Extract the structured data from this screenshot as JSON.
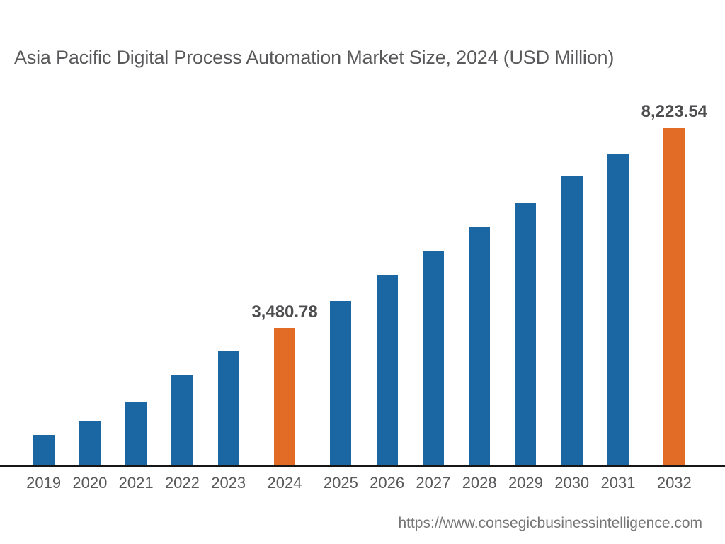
{
  "title": "Asia Pacific Digital Process Automation Market Size, 2024 (USD Million)",
  "source_url": "https://www.consegicbusinessintelligence.com",
  "colors": {
    "background": "#ffffff",
    "bar_default": "#1a67a3",
    "bar_highlight": "#e26b25",
    "axis_line": "#161616",
    "title_text": "#59595b",
    "value_label_text": "#4d4d50",
    "tick_label_text": "#59595b",
    "url_text": "#767676"
  },
  "chart_data": {
    "type": "bar",
    "title": "Asia Pacific Digital Process Automation Market Size, 2024 (USD Million)",
    "unit": "USD Million",
    "xlabel": "",
    "ylabel": "",
    "y_axis_visible": false,
    "grid": false,
    "legend": false,
    "categories": [
      "2019",
      "2020",
      "2021",
      "2022",
      "2023",
      "2024",
      "2025",
      "2026",
      "2027",
      "2028",
      "2029",
      "2030",
      "2031",
      "2032"
    ],
    "values": [
      950,
      1290,
      1730,
      2360,
      2950,
      3480.78,
      4120,
      4730,
      5300,
      5880,
      6430,
      7070,
      7590,
      8223.54
    ],
    "point_labels": {
      "2024": "3,480.78",
      "2032": "8,223.54"
    },
    "highlighted_categories": [
      "2024",
      "2032"
    ]
  }
}
